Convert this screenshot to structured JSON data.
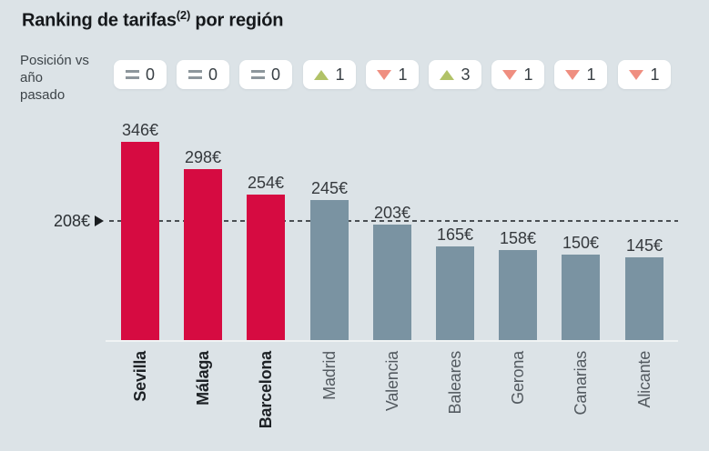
{
  "title": {
    "text": "Ranking de tarifas",
    "sup": "(2)",
    "suffix": " por región"
  },
  "position_label": {
    "lines": [
      "Posición vs",
      "año",
      "pasado"
    ]
  },
  "colors": {
    "background": "#dce3e7",
    "bar_highlight": "#d60b41",
    "bar_default": "#7a93a2",
    "badge_background": "#ffffff",
    "up_triangle": "#b1c267",
    "down_triangle": "#ef8e80",
    "equal_sign": "#8d969c",
    "dashed_line": "#4a4f53",
    "axis_line": "#f0f3f4"
  },
  "chart_data": {
    "type": "bar",
    "title": "Ranking de tarifas(2) por región",
    "categories": [
      "Sevilla",
      "Málaga",
      "Barcelona",
      "Madrid",
      "Valencia",
      "Baleares",
      "Gerona",
      "Canarias",
      "Alicante"
    ],
    "values": [
      346,
      298,
      254,
      245,
      203,
      165,
      158,
      150,
      145
    ],
    "value_labels": [
      "346€",
      "298€",
      "254€",
      "245€",
      "203€",
      "165€",
      "158€",
      "150€",
      "145€"
    ],
    "highlighted_categories": [
      "Sevilla",
      "Málaga",
      "Barcelona"
    ],
    "position_changes": [
      {
        "direction": "equal",
        "value": "0"
      },
      {
        "direction": "equal",
        "value": "0"
      },
      {
        "direction": "equal",
        "value": "0"
      },
      {
        "direction": "up",
        "value": "1"
      },
      {
        "direction": "down",
        "value": "1"
      },
      {
        "direction": "up",
        "value": "3"
      },
      {
        "direction": "down",
        "value": "1"
      },
      {
        "direction": "down",
        "value": "1"
      },
      {
        "direction": "down",
        "value": "1"
      }
    ],
    "reference_line": {
      "value": 208,
      "label": "208€"
    },
    "xlabel": "",
    "ylabel": "",
    "ylim": [
      0,
      380
    ],
    "grid": false,
    "legend": false
  }
}
